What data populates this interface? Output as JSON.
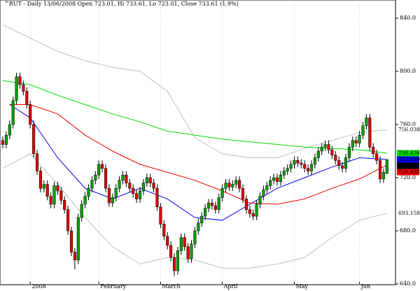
{
  "chart_data": {
    "type": "candlestick",
    "title": "^RUT - Daily 13/06/2008 Open 723.01, Hi 733.61, Lo 723.01, Close 733.61 (1.9%)",
    "categories": [
      null,
      null,
      null,
      null,
      null,
      null,
      null,
      null,
      "2008",
      null,
      null,
      null,
      null,
      null,
      null,
      null,
      null,
      null,
      null,
      null,
      null,
      null,
      null,
      null,
      null,
      null,
      null,
      null,
      "February",
      null,
      null,
      null,
      null,
      null,
      null,
      null,
      null,
      null,
      null,
      null,
      null,
      null,
      null,
      null,
      null,
      null,
      "March",
      null,
      null,
      null,
      null,
      null,
      null,
      null,
      null,
      null,
      null,
      null,
      null,
      null,
      null,
      null,
      null,
      null,
      "April",
      null,
      null,
      null,
      null,
      null,
      null,
      null,
      null,
      null,
      null,
      null,
      null,
      null,
      null,
      null,
      null,
      null,
      null,
      null,
      null,
      "May",
      null,
      null,
      null,
      null,
      null,
      null,
      null,
      null,
      null,
      null,
      null,
      null,
      null,
      null,
      null,
      null,
      null,
      null,
      "Jun",
      null,
      null,
      null,
      null,
      null,
      null,
      null,
      null
    ],
    "open": [
      748,
      745,
      752,
      760,
      778,
      796,
      790,
      785,
      775,
      760,
      738,
      725,
      712,
      715,
      706,
      700,
      714,
      710,
      703,
      696,
      680,
      664,
      658,
      690,
      700,
      706,
      712,
      718,
      722,
      730,
      727,
      712,
      701,
      705,
      712,
      718,
      722,
      716,
      712,
      708,
      704,
      710,
      716,
      720,
      716,
      712,
      698,
      685,
      676,
      669,
      660,
      650,
      665,
      675,
      668,
      659,
      670,
      680,
      686,
      691,
      697,
      701,
      699,
      696,
      705,
      712,
      716,
      713,
      715,
      718,
      712,
      704,
      696,
      693,
      691,
      700,
      706,
      711,
      714,
      718,
      720,
      717,
      722,
      725,
      727,
      730,
      733,
      731,
      730,
      727,
      725,
      730,
      735,
      740,
      743,
      745,
      741,
      737,
      733,
      729,
      727,
      735,
      743,
      748,
      746,
      752,
      759,
      765,
      743,
      738,
      733,
      719,
      723.01
    ],
    "high": [
      751,
      755,
      763,
      781,
      799,
      799,
      793,
      788,
      778,
      763,
      741,
      728,
      718,
      718,
      709,
      717,
      717,
      713,
      706,
      699,
      683,
      667,
      693,
      703,
      709,
      715,
      721,
      725,
      733,
      733,
      730,
      715,
      708,
      715,
      721,
      725,
      725,
      719,
      715,
      711,
      713,
      719,
      723,
      723,
      719,
      715,
      701,
      688,
      679,
      672,
      663,
      668,
      678,
      678,
      671,
      673,
      683,
      689,
      694,
      700,
      704,
      704,
      702,
      708,
      715,
      719,
      719,
      718,
      721,
      721,
      715,
      707,
      699,
      696,
      703,
      709,
      714,
      717,
      721,
      723,
      723,
      725,
      728,
      730,
      733,
      736,
      736,
      734,
      733,
      730,
      733,
      738,
      743,
      746,
      748,
      748,
      744,
      740,
      736,
      732,
      738,
      746,
      751,
      751,
      755,
      762,
      768,
      768,
      746,
      741,
      736,
      727,
      733.61
    ],
    "low": [
      742,
      742,
      749,
      757,
      775,
      787,
      782,
      772,
      757,
      735,
      722,
      709,
      709,
      703,
      697,
      697,
      707,
      700,
      693,
      677,
      661,
      651,
      655,
      687,
      697,
      703,
      709,
      715,
      719,
      724,
      709,
      698,
      698,
      702,
      709,
      715,
      713,
      709,
      705,
      701,
      701,
      707,
      713,
      713,
      709,
      695,
      682,
      673,
      666,
      657,
      646,
      647,
      662,
      665,
      656,
      656,
      667,
      677,
      683,
      688,
      694,
      696,
      693,
      693,
      702,
      709,
      710,
      710,
      712,
      709,
      701,
      693,
      690,
      688,
      688,
      697,
      703,
      708,
      711,
      715,
      714,
      714,
      719,
      722,
      724,
      727,
      728,
      727,
      724,
      722,
      722,
      727,
      732,
      737,
      740,
      738,
      734,
      730,
      726,
      724,
      724,
      732,
      740,
      743,
      743,
      749,
      756,
      740,
      735,
      730,
      716,
      716,
      723.01
    ],
    "close": [
      745,
      752,
      760,
      778,
      796,
      790,
      785,
      775,
      760,
      738,
      725,
      712,
      715,
      706,
      700,
      714,
      710,
      703,
      696,
      680,
      664,
      658,
      690,
      700,
      706,
      712,
      718,
      722,
      730,
      727,
      712,
      701,
      705,
      712,
      718,
      722,
      716,
      712,
      708,
      704,
      710,
      716,
      720,
      716,
      712,
      698,
      685,
      676,
      669,
      660,
      650,
      665,
      675,
      668,
      659,
      670,
      680,
      686,
      691,
      697,
      701,
      699,
      696,
      705,
      712,
      716,
      713,
      715,
      718,
      712,
      704,
      696,
      693,
      691,
      700,
      706,
      711,
      714,
      718,
      720,
      717,
      722,
      725,
      727,
      730,
      733,
      731,
      730,
      727,
      725,
      730,
      735,
      740,
      743,
      745,
      741,
      737,
      733,
      729,
      727,
      735,
      743,
      748,
      746,
      752,
      759,
      765,
      743,
      738,
      733,
      719,
      724,
      733.61
    ],
    "up_color": "#00a000",
    "down_color": "#e00000",
    "overlays": [
      {
        "color": "#c0c0c0",
        "x": [
          0,
          8,
          16,
          24,
          32,
          40,
          48,
          56,
          64,
          72,
          80,
          88,
          96,
          104,
          112
        ],
        "values": [
          835,
          825,
          815,
          808,
          803,
          800,
          785,
          750,
          738,
          735,
          735,
          742,
          748,
          754,
          756.038
        ]
      },
      {
        "color": "#00dd00",
        "x": [
          0,
          8,
          16,
          24,
          32,
          40,
          48,
          56,
          64,
          72,
          80,
          88,
          96,
          104,
          112
        ],
        "values": [
          793,
          790,
          782,
          775,
          768,
          762,
          755,
          752,
          749,
          747,
          745,
          743,
          742,
          741,
          738.436
        ]
      },
      {
        "color": "#0000ee",
        "x": [
          2,
          8,
          16,
          24,
          32,
          40,
          48,
          56,
          64,
          72,
          80,
          88,
          96,
          104,
          112
        ],
        "values": [
          775,
          765,
          735,
          712,
          704,
          712,
          704,
          690,
          688,
          700,
          712,
          720,
          728,
          735,
          733.699
        ]
      },
      {
        "color": "#ee0000",
        "x": [
          2,
          8,
          16,
          24,
          32,
          40,
          48,
          56,
          64,
          72,
          80,
          88,
          96,
          104,
          112
        ],
        "values": [
          775,
          775,
          768,
          752,
          740,
          730,
          724,
          718,
          710,
          701,
          700,
          704,
          712,
          719,
          729.483
        ]
      },
      {
        "color": "#c0c0c0",
        "x": [
          0,
          8,
          16,
          24,
          32,
          40,
          48,
          56,
          64,
          72,
          80,
          88,
          96,
          104,
          112
        ],
        "values": [
          727,
          738,
          715,
          690,
          668,
          655,
          660,
          658,
          652,
          652,
          655,
          660,
          675,
          688,
          693.158
        ]
      }
    ],
    "ylim": [
      640,
      840
    ],
    "yticks": [
      {
        "value": 640,
        "label": "640.0"
      },
      {
        "value": 680,
        "label": "680.0"
      },
      {
        "value": 720,
        "label": "720.0"
      },
      {
        "value": 760,
        "label": "760.0"
      },
      {
        "value": 800,
        "label": "800.0"
      },
      {
        "value": 840,
        "label": "840.0"
      }
    ]
  }
}
